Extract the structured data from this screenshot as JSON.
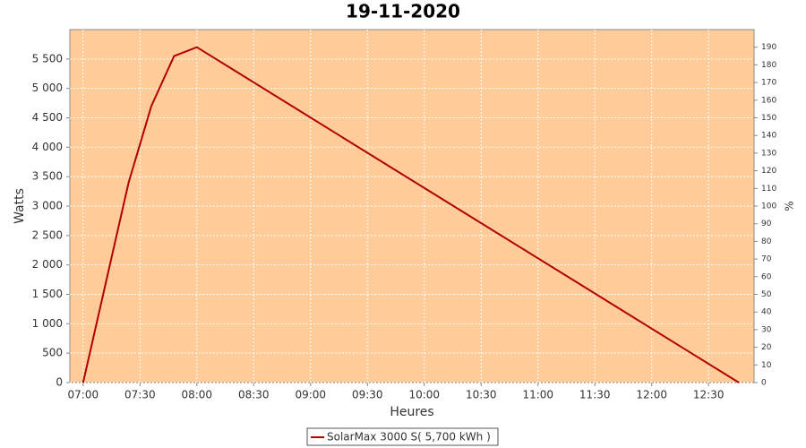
{
  "chart_data": {
    "type": "line",
    "title": "19-11-2020",
    "x_label": "Heures",
    "y_label": "Watts",
    "y2_label": "%",
    "x": [
      "07:00",
      "07:24",
      "07:36",
      "07:48",
      "08:00",
      "12:46"
    ],
    "series": [
      {
        "name": "SolarMax 3000 S( 5,700 kWh )",
        "color": "#b00000",
        "values": [
          0,
          3400,
          4700,
          5550,
          5700,
          0
        ]
      }
    ],
    "xlim": [
      "06:53",
      "12:54"
    ],
    "xticks": [
      "07:00",
      "07:30",
      "08:00",
      "08:30",
      "09:00",
      "09:30",
      "10:00",
      "10:30",
      "11:00",
      "11:30",
      "12:00",
      "12:30"
    ],
    "ylim": [
      0,
      6000
    ],
    "yticks": [
      0,
      500,
      {
        "value": 1000,
        "label": "1 000"
      },
      {
        "value": 1500,
        "label": "1 500"
      },
      {
        "value": 2000,
        "label": "2 000"
      },
      {
        "value": 2500,
        "label": "2 500"
      },
      {
        "value": 3000,
        "label": "3 000"
      },
      {
        "value": 3500,
        "label": "3 500"
      },
      {
        "value": 4000,
        "label": "4 000"
      },
      {
        "value": 4500,
        "label": "4 500"
      },
      {
        "value": 5000,
        "label": "5 000"
      },
      {
        "value": 5500,
        "label": "5 500"
      }
    ],
    "y2lim": [
      0,
      200
    ],
    "y2ticks": [
      0,
      10,
      20,
      30,
      40,
      50,
      60,
      70,
      80,
      90,
      100,
      110,
      120,
      130,
      140,
      150,
      160,
      170,
      180,
      190
    ],
    "grid": true,
    "plot_background": "#ffcc99",
    "legend": "bottom"
  }
}
